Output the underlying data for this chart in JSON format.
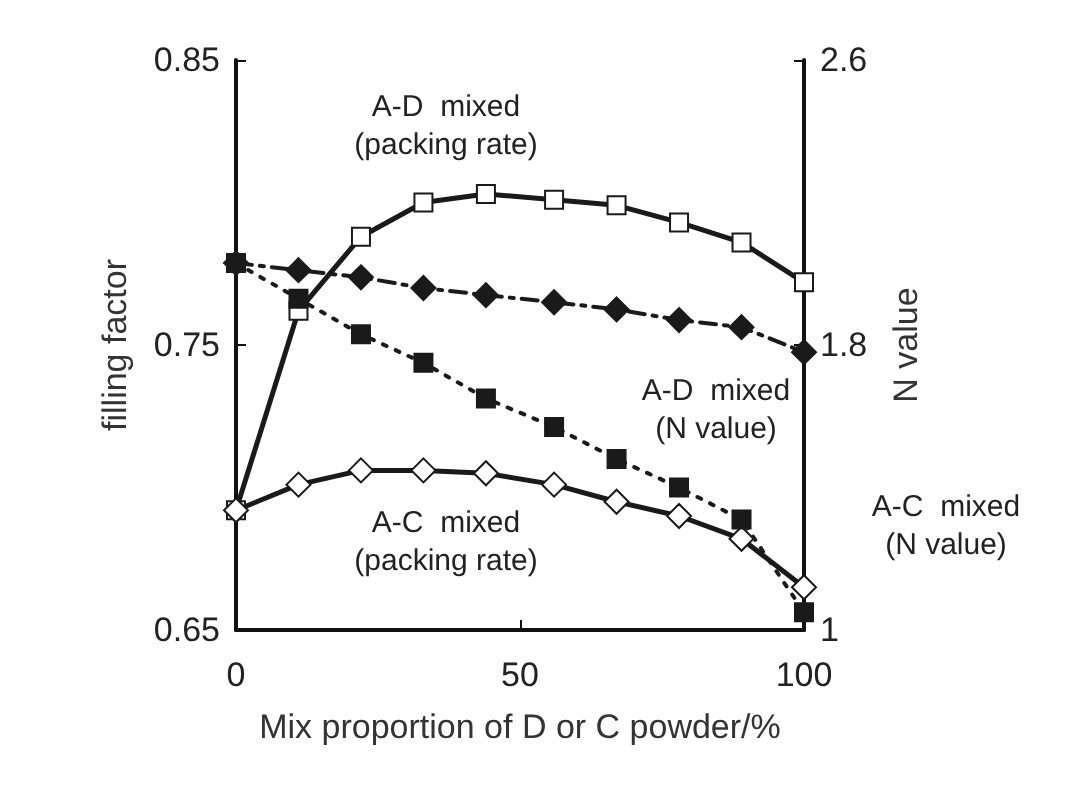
{
  "chart_data": {
    "type": "line",
    "xlabel": "Mix proportion of D or C powder/%",
    "ylabel": "filling factor",
    "y2label": "N value",
    "x": [
      0,
      11,
      22,
      33,
      44,
      56,
      67,
      78,
      89,
      100
    ],
    "series": [
      {
        "color": "#1a1a1a",
        "marker": "square",
        "line_style": "solid",
        "values": [
          0.692,
          0.762,
          0.788,
          0.8,
          0.803,
          0.801,
          0.799,
          0.793,
          0.786,
          0.772
        ]
      },
      {
        "color": "#1a1a1a",
        "marker": "diamond",
        "line_style": "solid",
        "values": [
          0.692,
          0.701,
          0.706,
          0.706,
          0.705,
          0.701,
          0.695,
          0.69,
          0.682,
          0.665
        ]
      },
      {
        "color": "#1a1a1a",
        "marker": "diamond",
        "axis": "y2",
        "line_style": "dashed",
        "values": [
          2.03,
          2.01,
          1.99,
          1.96,
          1.94,
          1.92,
          1.9,
          1.87,
          1.85,
          1.78
        ]
      },
      {
        "color": "#1a1a1a",
        "marker": "square",
        "axis": "y2",
        "line_style": "dotted",
        "values": [
          2.03,
          1.93,
          1.83,
          1.75,
          1.65,
          1.57,
          1.48,
          1.4,
          1.31,
          1.05
        ]
      }
    ],
    "xlim": [
      0,
      100
    ],
    "xticks": [
      0,
      50,
      100
    ],
    "ylim": [
      0.65,
      0.85
    ],
    "yticks": [
      0.65,
      0.75,
      0.85
    ],
    "y2lim": [
      1,
      2.6
    ],
    "y2ticks": [
      1,
      1.8,
      2.6
    ],
    "grid": false,
    "annotations": [
      "A-D  mixed\n(packing rate)",
      "A-D  mixed\n(N value)",
      "A-C  mixed\n(packing rate)",
      "A-C  mixed\n(N value)"
    ]
  }
}
